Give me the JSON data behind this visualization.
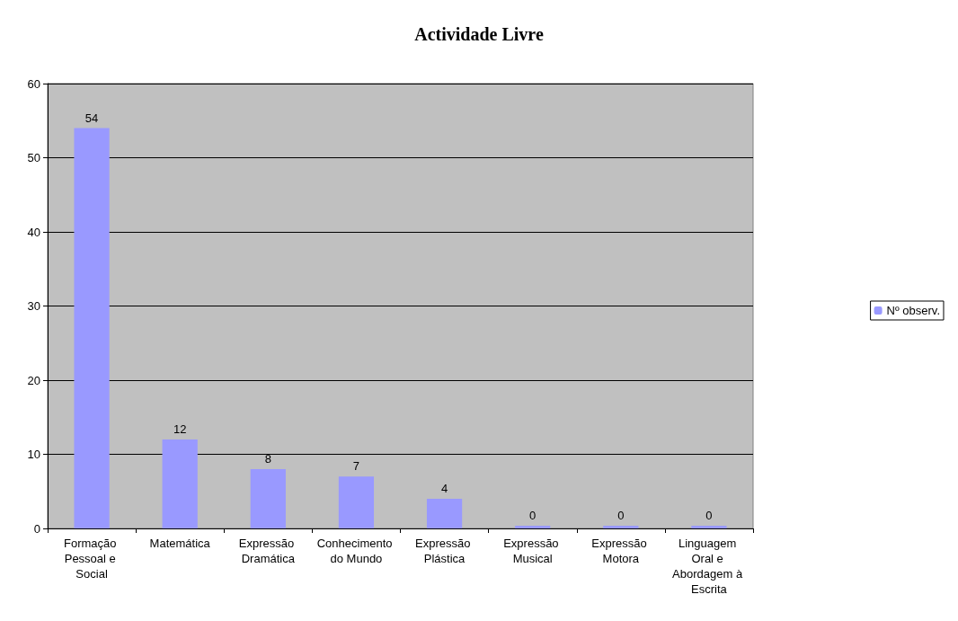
{
  "chart_data": {
    "type": "bar",
    "title": "Actividade Livre",
    "categories": [
      "Formação Pessoal e Social",
      "Matemática",
      "Expressão Dramática",
      "Conhecimento do Mundo",
      "Expressão Plástica",
      "Expressão Musical",
      "Expressão Motora",
      "Linguagem Oral e Abordagem à Escrita"
    ],
    "series": [
      {
        "name": "Nº observ.",
        "color": "#9999ff",
        "values": [
          54,
          12,
          8,
          7,
          4,
          0,
          0,
          0
        ]
      }
    ],
    "ylim": [
      0,
      60
    ],
    "yticks": [
      0,
      10,
      20,
      30,
      40,
      50,
      60
    ],
    "grid": "y",
    "legend": "right",
    "data_labels": true
  }
}
